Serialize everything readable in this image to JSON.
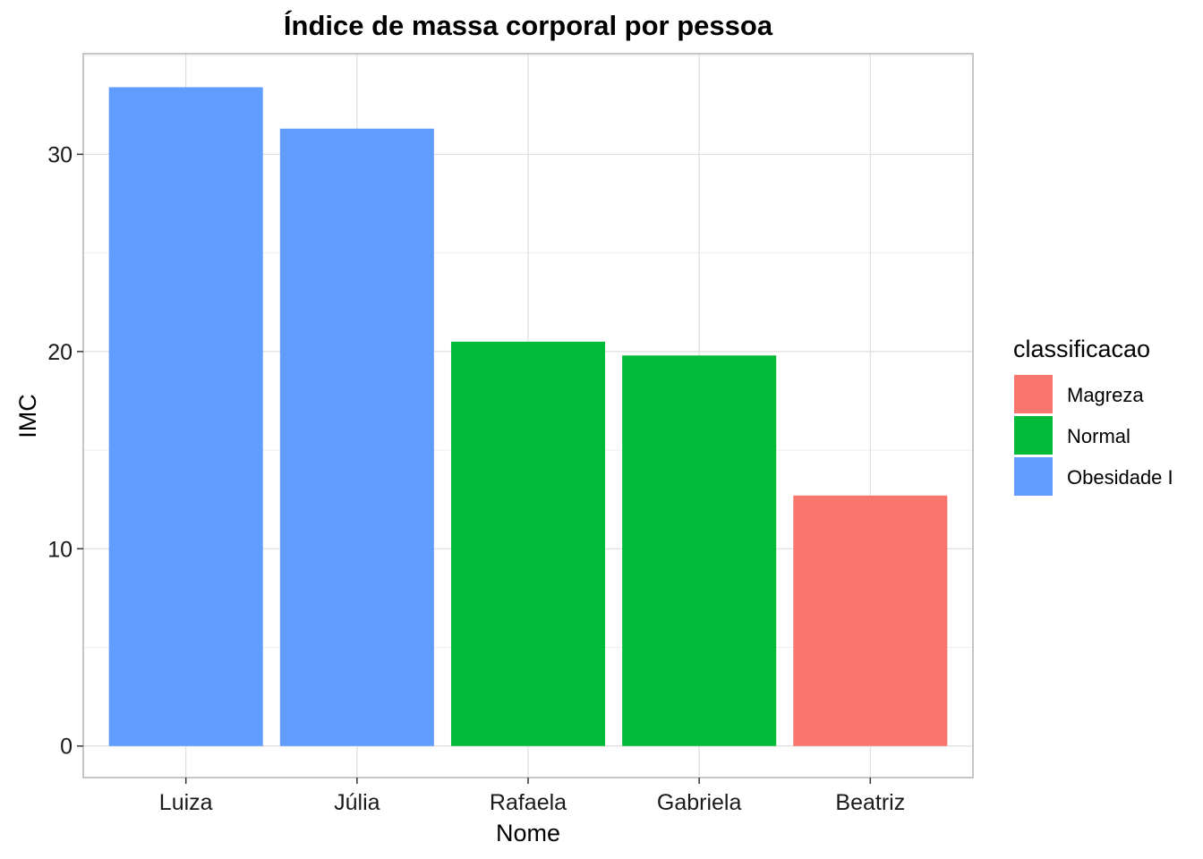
{
  "chart_data": {
    "type": "bar",
    "title": "Índice de massa corporal por pessoa",
    "xlabel": "Nome",
    "ylabel": "IMC",
    "categories": [
      "Luiza",
      "Júlia",
      "Rafaela",
      "Gabriela",
      "Beatriz"
    ],
    "values": [
      33.4,
      31.3,
      20.5,
      19.8,
      12.7
    ],
    "classes": [
      "Obesidade I",
      "Obesidade I",
      "Normal",
      "Normal",
      "Magreza"
    ],
    "ylim": [
      -1.6,
      35.1
    ],
    "yticks": [
      0,
      10,
      20,
      30
    ],
    "grid": true,
    "legend": {
      "title": "classificacao",
      "placement": "right",
      "items": [
        {
          "label": "Magreza",
          "color": "#F8766D"
        },
        {
          "label": "Normal",
          "color": "#00BA38"
        },
        {
          "label": "Obesidade I",
          "color": "#619CFF"
        }
      ]
    },
    "colors": {
      "Magreza": "#F8766D",
      "Normal": "#00BA38",
      "Obesidade I": "#619CFF",
      "panel_border": "#b3b3b3",
      "grid_major": "#dedede",
      "grid_minor": "#eeeeee"
    }
  }
}
